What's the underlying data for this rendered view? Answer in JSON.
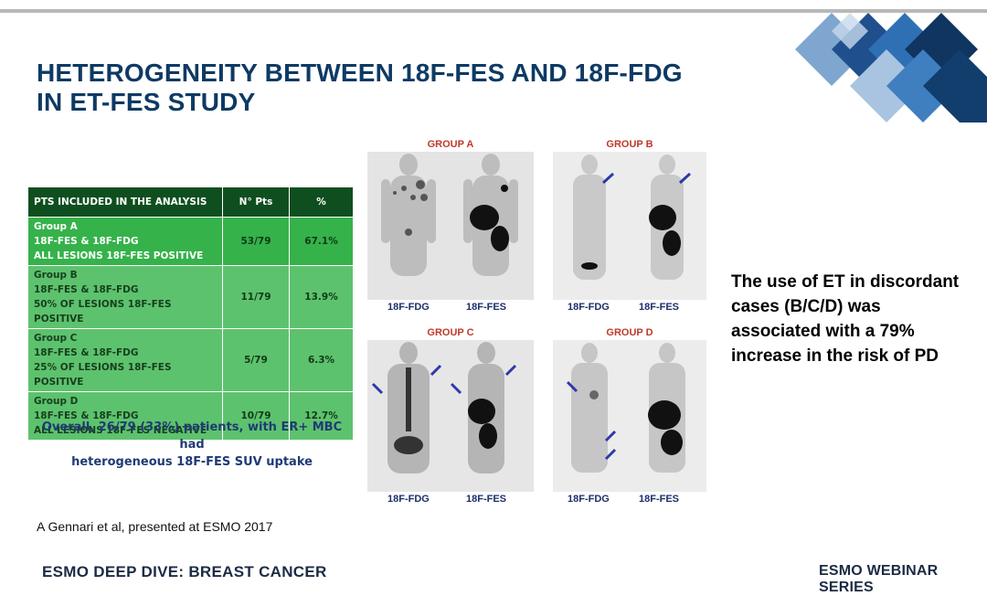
{
  "title": {
    "line1": "HETEROGENEITY BETWEEN 18F-FES AND 18F-FDG",
    "line2": "IN ET-FES STUDY"
  },
  "table": {
    "headers": [
      "PTS INCLUDED IN THE ANALYSIS",
      "N° Pts",
      "%"
    ],
    "rows": [
      {
        "group": "Group A",
        "line2": "18F-FES & 18F-FDG",
        "line3": "ALL LESIONS 18F-FES POSITIVE",
        "n": "53/79",
        "pct": "67.1%"
      },
      {
        "group": "Group B",
        "line2": "18F-FES & 18F-FDG",
        "line3": "50% OF LESIONS 18F-FES POSITIVE",
        "n": "11/79",
        "pct": "13.9%"
      },
      {
        "group": "Group C",
        "line2": "18F-FES & 18F-FDG",
        "line3": "25% OF LESIONS 18F-FES POSITIVE",
        "n": "5/79",
        "pct": "6.3%"
      },
      {
        "group": "Group D",
        "line2": "18F-FES & 18F-FDG",
        "line3": "ALL LESIONS 18F-FES NEGATIVE",
        "n": "10/79",
        "pct": "12.7%"
      }
    ]
  },
  "overall": {
    "line1": "Overall, 26/79 (33%) patients, with ER+ MBC had",
    "line2": "heterogeneous 18F-FES SUV uptake"
  },
  "scans": {
    "group_a": "GROUP A",
    "group_b": "GROUP B",
    "group_c": "GROUP C",
    "group_d": "GROUP D",
    "fdg": "18F-FDG",
    "fes": "18F-FES"
  },
  "conclusion": {
    "line1": "The use of ET in discordant",
    "line2": "cases (B/C/D) was",
    "line3": "associated with a 79%",
    "line4": "increase in the risk of PD"
  },
  "citation": "A Gennari et al, presented at ESMO 2017",
  "footer": {
    "left": "ESMO DEEP DIVE: BREAST CANCER",
    "right_brand": "ESMO",
    "right_rest": " WEBINAR SERIES"
  },
  "colors": {
    "title": "#0e3a64",
    "table_header": "#0f4f1f",
    "group_a_row": "#35b24a",
    "other_rows": "#5dc26d",
    "overall_text": "#1f3b75",
    "group_label": "#c0392b",
    "arrow": "#2b3aa8"
  }
}
